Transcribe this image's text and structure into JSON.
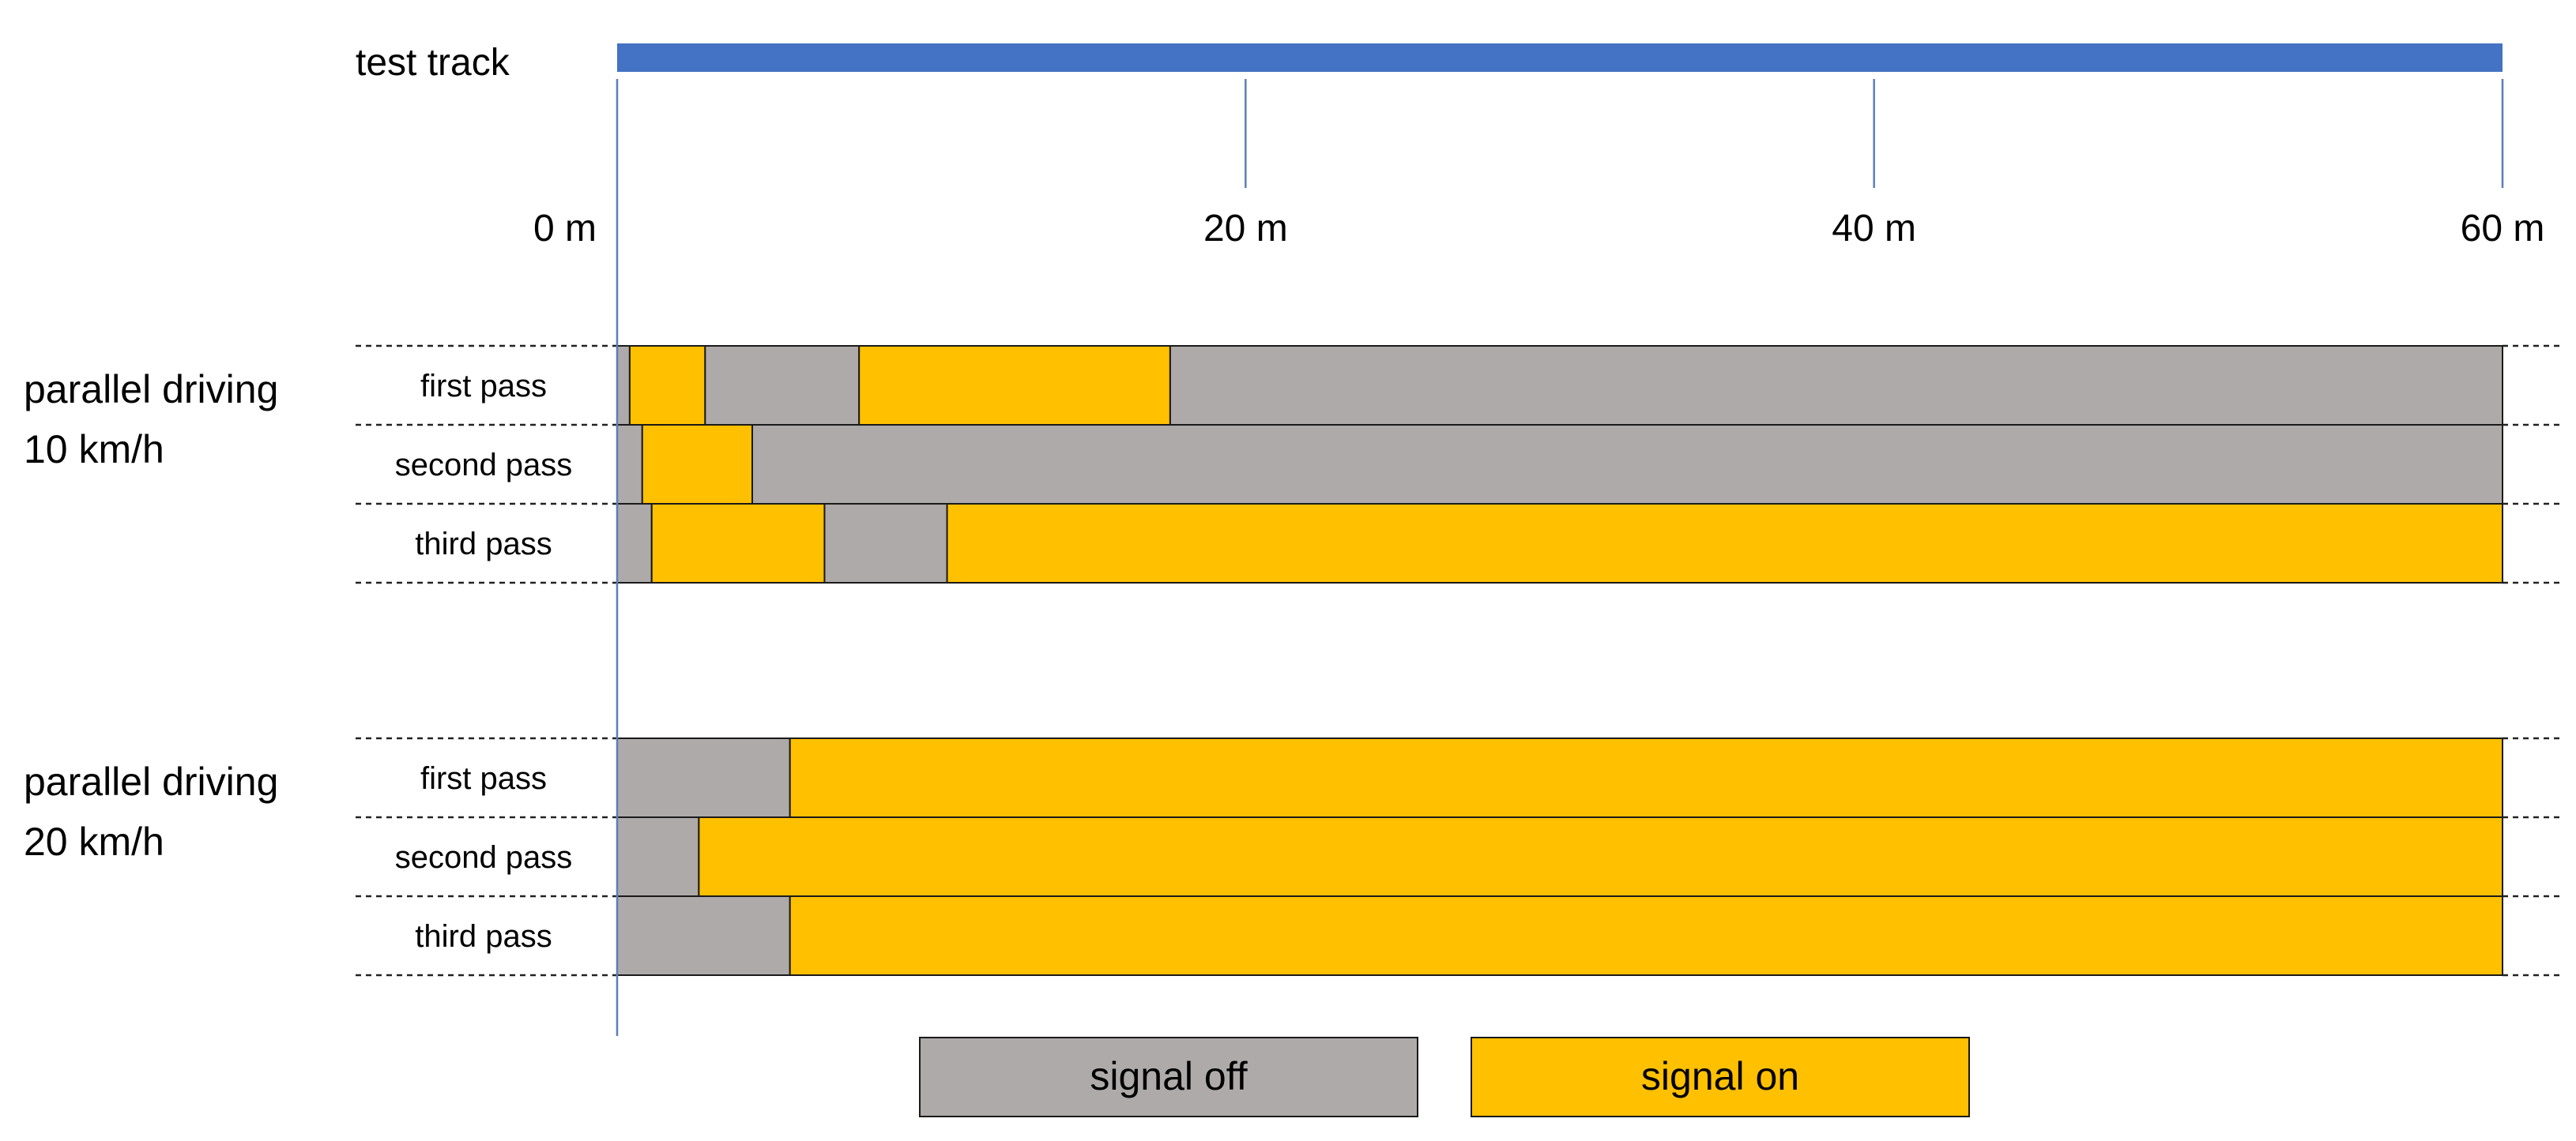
{
  "chart_data": {
    "type": "bar",
    "title": "",
    "xlabel": "",
    "ylabel": "",
    "xlim": [
      0,
      60
    ],
    "x_unit": "m",
    "track": {
      "label": "test track",
      "color": "#4472C4",
      "range": [
        0,
        60
      ]
    },
    "x_ticks": [
      {
        "value": 0,
        "label": "0 m"
      },
      {
        "value": 20,
        "label": "20 m"
      },
      {
        "value": 40,
        "label": "40 m"
      },
      {
        "value": 60,
        "label": "60 m"
      }
    ],
    "states": {
      "off": {
        "label": "signal off",
        "color": "#AEAAAA"
      },
      "on": {
        "label": "signal on",
        "color": "#FFC000"
      }
    },
    "legend_position": "bottom",
    "groups": [
      {
        "label_line1": "parallel driving",
        "label_line2": "10 km/h",
        "passes": [
          {
            "label": "first pass",
            "segments": [
              {
                "start": 0,
                "end": 0.4,
                "state": "off"
              },
              {
                "start": 0.4,
                "end": 2.8,
                "state": "on"
              },
              {
                "start": 2.8,
                "end": 7.7,
                "state": "off"
              },
              {
                "start": 7.7,
                "end": 17.6,
                "state": "on"
              },
              {
                "start": 17.6,
                "end": 60,
                "state": "off"
              }
            ]
          },
          {
            "label": "second pass",
            "segments": [
              {
                "start": 0,
                "end": 0.8,
                "state": "off"
              },
              {
                "start": 0.8,
                "end": 4.3,
                "state": "on"
              },
              {
                "start": 4.3,
                "end": 60,
                "state": "off"
              }
            ]
          },
          {
            "label": "third pass",
            "segments": [
              {
                "start": 0,
                "end": 1.1,
                "state": "off"
              },
              {
                "start": 1.1,
                "end": 6.6,
                "state": "on"
              },
              {
                "start": 6.6,
                "end": 10.5,
                "state": "off"
              },
              {
                "start": 10.5,
                "end": 60,
                "state": "on"
              }
            ]
          }
        ]
      },
      {
        "label_line1": "parallel driving",
        "label_line2": "20 km/h",
        "passes": [
          {
            "label": "first pass",
            "segments": [
              {
                "start": 0,
                "end": 5.5,
                "state": "off"
              },
              {
                "start": 5.5,
                "end": 60,
                "state": "on"
              }
            ]
          },
          {
            "label": "second pass",
            "segments": [
              {
                "start": 0,
                "end": 2.6,
                "state": "off"
              },
              {
                "start": 2.6,
                "end": 60,
                "state": "on"
              }
            ]
          },
          {
            "label": "third pass",
            "segments": [
              {
                "start": 0,
                "end": 5.5,
                "state": "off"
              },
              {
                "start": 5.5,
                "end": 60,
                "state": "on"
              }
            ]
          }
        ]
      }
    ]
  }
}
